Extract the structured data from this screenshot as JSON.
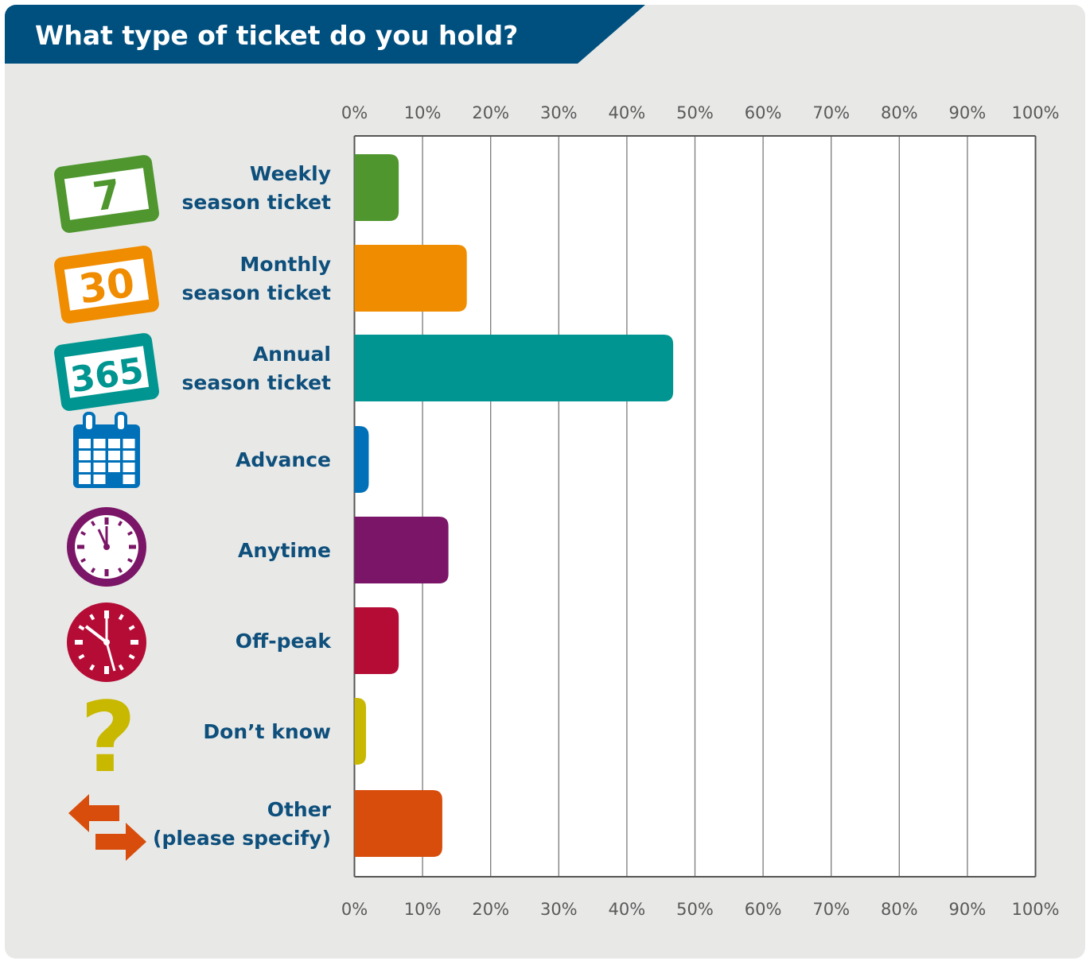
{
  "chart_data": {
    "type": "bar",
    "orientation": "horizontal",
    "title": "What type of ticket do you hold?",
    "categories": [
      [
        "Weekly",
        "season ticket"
      ],
      [
        "Monthly",
        "season ticket"
      ],
      [
        "Annual",
        "season ticket"
      ],
      [
        "Advance"
      ],
      [
        "Anytime"
      ],
      [
        "Off-peak"
      ],
      [
        "Don’t know"
      ],
      [
        "Other",
        "(please specify)"
      ]
    ],
    "values": [
      6.5,
      16.5,
      46.8,
      2.1,
      13.8,
      6.5,
      1.7,
      12.9
    ],
    "colors": [
      "#4f962f",
      "#f08c00",
      "#009590",
      "#0070b8",
      "#7b1567",
      "#b40c35",
      "#c8b800",
      "#d84d0c"
    ],
    "icons": [
      "weekly-ticket-icon",
      "monthly-ticket-icon",
      "annual-ticket-icon",
      "calendar-icon",
      "clock-icon",
      "off-peak-clock-icon",
      "question-mark-icon",
      "exchange-arrows-icon"
    ],
    "icon_text": [
      "7",
      "30",
      "365"
    ],
    "xlim": [
      0,
      100
    ],
    "xticks": [
      0,
      10,
      20,
      30,
      40,
      50,
      60,
      70,
      80,
      90,
      100
    ],
    "tick_suffix": "%",
    "grid": true,
    "title_color": "#00507f"
  }
}
